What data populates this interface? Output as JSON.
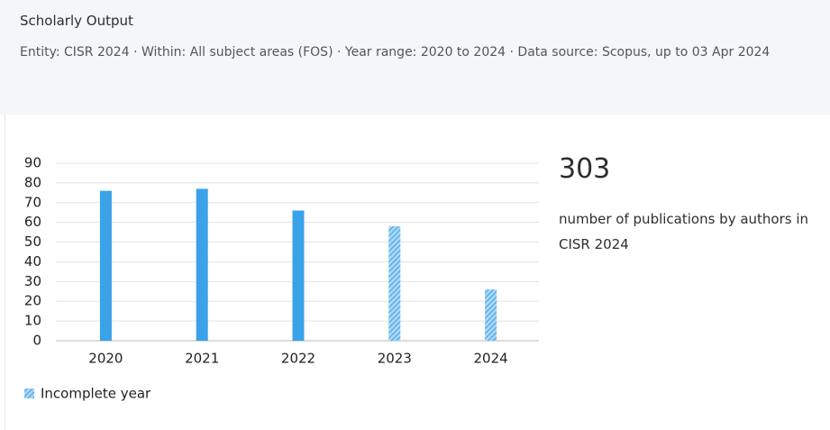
{
  "header": {
    "title": "Scholarly Output",
    "subtitle": "Entity: CISR 2024 · Within: All subject areas (FOS) · Year range: 2020 to 2024 · Data source: Scopus, up to 03 Apr 2024"
  },
  "summary": {
    "value": 303,
    "label": "number of publications by authors in CISR 2024"
  },
  "chart_data": {
    "type": "bar",
    "categories": [
      "2020",
      "2021",
      "2022",
      "2023",
      "2024"
    ],
    "values": [
      76,
      77,
      66,
      58,
      26
    ],
    "incomplete": [
      false,
      false,
      false,
      true,
      true
    ],
    "color": "#3ba1e8",
    "ylim": [
      0,
      90
    ],
    "yticks": [
      0,
      10,
      20,
      30,
      40,
      50,
      60,
      70,
      80,
      90
    ],
    "grid": true,
    "legend": "Incomplete year"
  }
}
